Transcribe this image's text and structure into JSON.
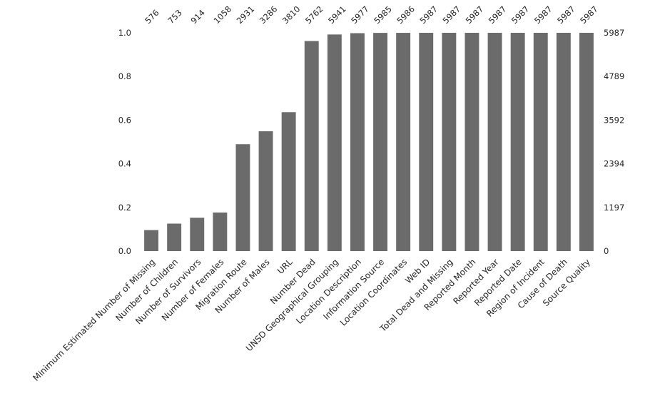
{
  "figure": {
    "background_color": "#ffffff"
  },
  "chart_data": {
    "type": "bar",
    "title": "",
    "xlabel": "",
    "ylabel": "",
    "categories": [
      "Minimum Estimated Number of Missing",
      "Number of Children",
      "Number of Survivors",
      "Number of Females",
      "Migration Route",
      "Number of Males",
      "URL",
      "Number Dead",
      "UNSD Geographical Grouping",
      "Location Description",
      "Information Source",
      "Location Coordinates",
      "Web ID",
      "Total Dead and Missing",
      "Reported Month",
      "Reported Year",
      "Reported Date",
      "Region of Incident",
      "Cause of Death",
      "Source Quality"
    ],
    "counts": [
      576,
      753,
      914,
      1058,
      2931,
      3286,
      3810,
      5762,
      5941,
      5977,
      5985,
      5986,
      5987,
      5987,
      5987,
      5987,
      5987,
      5987,
      5987,
      5987
    ],
    "total": 5987,
    "values_fraction": [
      0.0962,
      0.1258,
      0.1527,
      0.1767,
      0.4896,
      0.5489,
      0.6364,
      0.9624,
      0.9923,
      0.9983,
      0.9997,
      0.9998,
      1.0,
      1.0,
      1.0,
      1.0,
      1.0,
      1.0,
      1.0,
      1.0
    ],
    "left_axis": {
      "ticks": [
        "0.0",
        "0.2",
        "0.4",
        "0.6",
        "0.8",
        "1.0"
      ],
      "tick_values": [
        0,
        0.2,
        0.4,
        0.6,
        0.8,
        1.0
      ],
      "range": [
        0,
        1
      ]
    },
    "right_axis": {
      "ticks": [
        "0",
        "1197",
        "2394",
        "3592",
        "4789",
        "5987"
      ],
      "tick_values": [
        0,
        1197,
        2394,
        3592,
        4789,
        5987
      ],
      "range": [
        0,
        5987
      ]
    },
    "top_labels_rotation": 45,
    "x_labels_rotation": 45,
    "grid": false,
    "legend": "none",
    "spines": "none",
    "bar_color": "#6b6b6b",
    "text_color": "#262626"
  }
}
